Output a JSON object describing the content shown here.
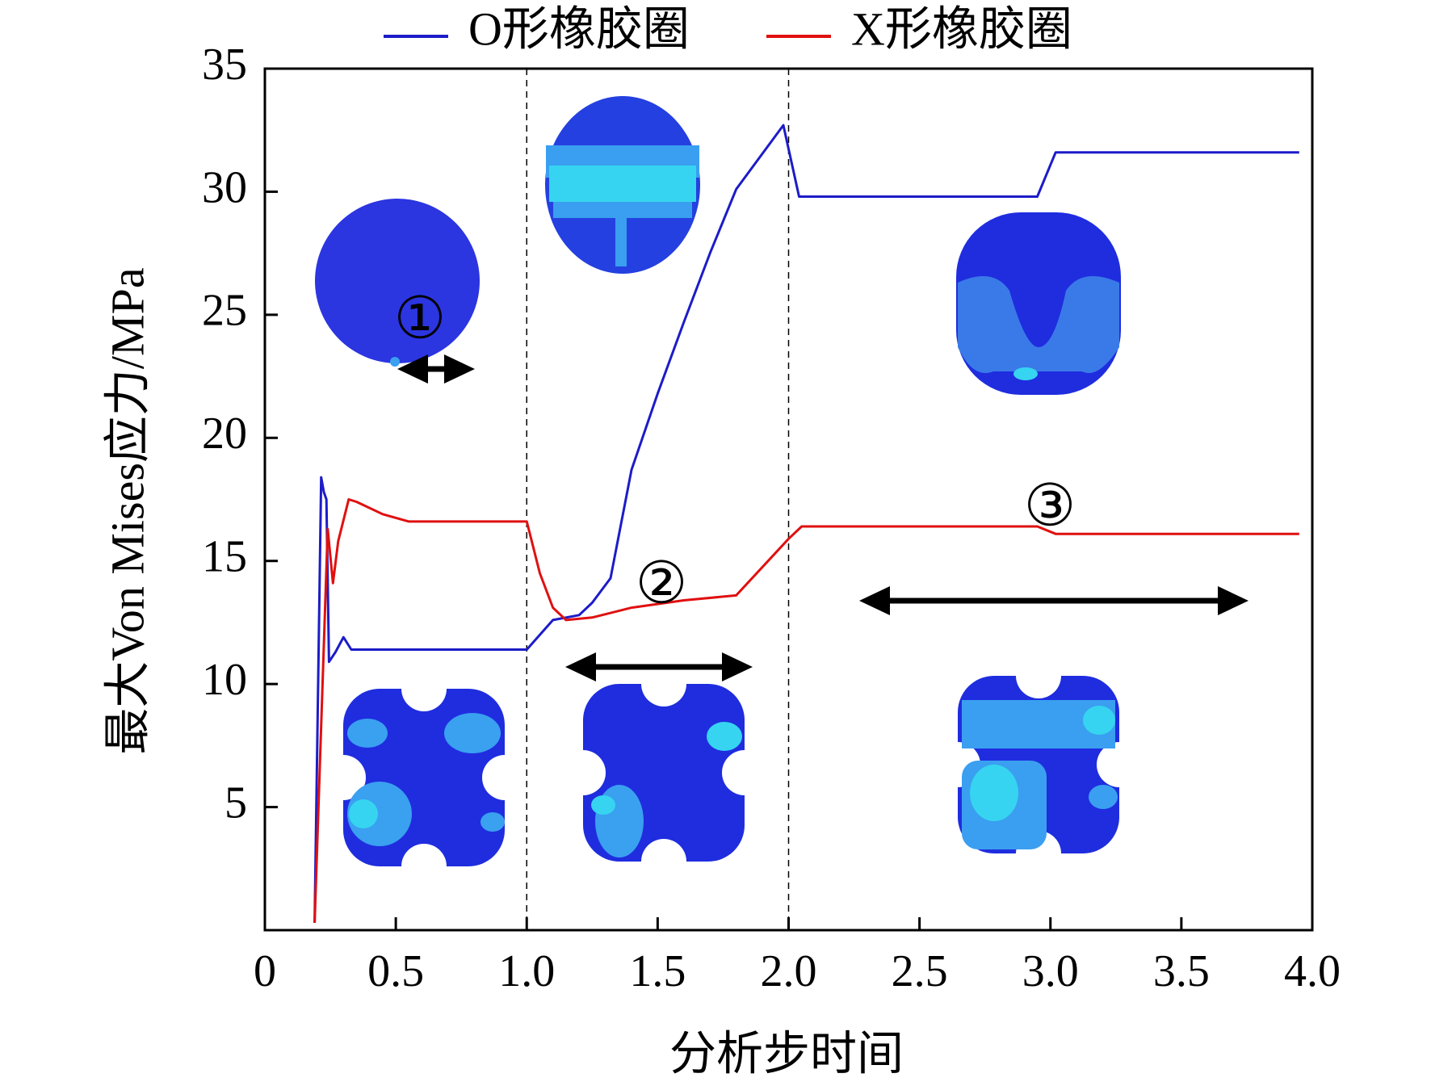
{
  "chart_data": {
    "type": "line",
    "xlabel": "分析步时间",
    "ylabel": "最大Von Mises应力/MPa",
    "xlim": [
      0,
      4
    ],
    "ylim": [
      0,
      35
    ],
    "xticks": [
      0,
      0.5,
      {
        "value": 1,
        "label": "1.0"
      },
      1.5,
      {
        "value": 2,
        "label": "2.0"
      },
      2.5,
      {
        "value": 3,
        "label": "3.0"
      },
      3.5,
      {
        "value": 4,
        "label": "4.0"
      }
    ],
    "yticks": [
      5,
      10,
      15,
      20,
      25,
      30,
      35
    ],
    "vlines": [
      1,
      2
    ],
    "annotations": [
      "①",
      "②",
      "③"
    ],
    "legend": "top",
    "series": [
      {
        "name": "O形橡胶圈",
        "color": "#1c1cc8",
        "x": [
          0.19,
          0.215,
          0.225,
          0.235,
          0.245,
          0.27,
          0.3,
          0.33,
          0.4,
          0.5,
          1.0,
          1.1,
          1.2,
          1.25,
          1.32,
          1.4,
          1.5,
          1.6,
          1.7,
          1.8,
          1.98,
          2.04,
          2.95,
          3.02,
          3.95
        ],
        "values": [
          0.3,
          18.4,
          17.8,
          17.5,
          10.9,
          11.3,
          11.9,
          11.4,
          11.4,
          11.4,
          11.4,
          12.6,
          12.8,
          13.3,
          14.3,
          18.7,
          21.8,
          24.7,
          27.5,
          30.1,
          32.7,
          29.8,
          29.8,
          31.6,
          31.6
        ]
      },
      {
        "name": "X形橡胶圈",
        "color": "#e01010",
        "x": [
          0.19,
          0.24,
          0.26,
          0.28,
          0.32,
          0.35,
          0.45,
          0.55,
          1.0,
          1.05,
          1.1,
          1.15,
          1.25,
          1.4,
          1.6,
          1.8,
          2.0,
          2.05,
          2.95,
          3.02,
          3.95
        ],
        "values": [
          0.3,
          16.3,
          14.1,
          15.8,
          17.5,
          17.4,
          16.9,
          16.6,
          16.6,
          14.5,
          13.1,
          12.6,
          12.7,
          13.1,
          13.4,
          13.6,
          15.9,
          16.4,
          16.4,
          16.1,
          16.1
        ]
      }
    ]
  }
}
